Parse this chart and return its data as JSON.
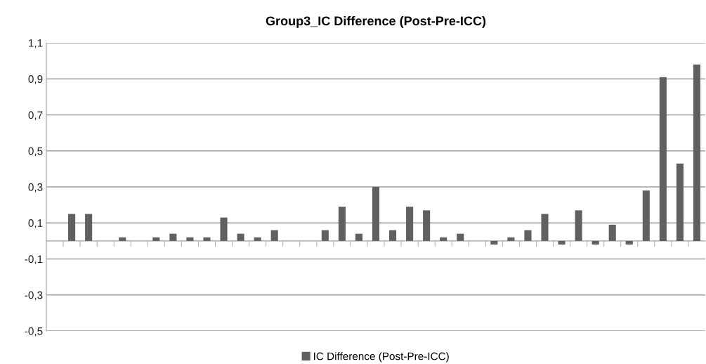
{
  "chart_data": {
    "type": "bar",
    "title": "Group3_IC Difference (Post-Pre-ICC)",
    "categories": [
      null,
      null,
      null,
      null,
      null,
      null,
      null,
      null,
      null,
      null,
      null,
      null,
      null,
      null,
      null,
      null,
      null,
      null,
      null,
      null,
      null,
      null,
      null,
      null,
      null,
      null,
      null,
      null,
      null,
      null,
      null,
      null,
      null,
      null,
      null,
      null,
      null,
      null,
      null
    ],
    "series": [
      {
        "name": "IC Difference (Post-Pre-ICC)",
        "color": "#606060",
        "values": [
          0,
          0.15,
          0.15,
          0,
          0.02,
          0,
          0.02,
          0.04,
          0.02,
          0.02,
          0.13,
          0.04,
          0.02,
          0.06,
          0,
          0,
          0.06,
          0.19,
          0.04,
          0.3,
          0.06,
          0.19,
          0.17,
          0.02,
          0.04,
          0,
          -0.02,
          0.02,
          0.06,
          0.15,
          -0.02,
          0.17,
          -0.02,
          0.09,
          -0.02,
          0.28,
          0.91,
          0.43,
          0.98
        ]
      }
    ],
    "ylim": [
      -0.5,
      1.1
    ],
    "yticks": [
      {
        "value": -0.5,
        "label": "-0,5"
      },
      {
        "value": -0.3,
        "label": "-0,3"
      },
      {
        "value": -0.1,
        "label": "-0,1"
      },
      {
        "value": 0.1,
        "label": "0,1"
      },
      {
        "value": 0.3,
        "label": "0,3"
      },
      {
        "value": 0.5,
        "label": "0,5"
      },
      {
        "value": 0.7,
        "label": "0,7"
      },
      {
        "value": 0.9,
        "label": "0,9"
      },
      {
        "value": 1.1,
        "label": "1,1"
      }
    ],
    "grid": "y",
    "legend": "bottom"
  }
}
